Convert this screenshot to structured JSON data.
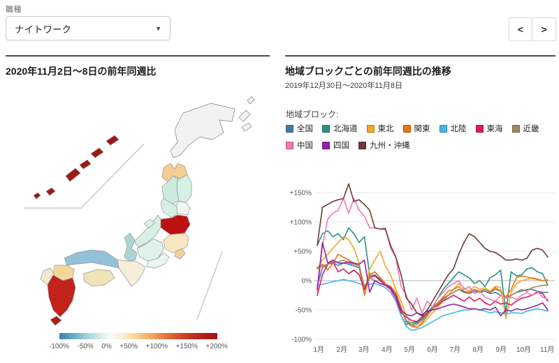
{
  "filter": {
    "label": "職種",
    "value": "ナイトワーク"
  },
  "pager": {
    "prev_label": "<",
    "next_label": ">"
  },
  "map_panel": {
    "title": "2020年11月2日〜8日の前年同週比",
    "color_scale": {
      "ticks": [
        "-100%",
        "-50%",
        "0%",
        "+50%",
        "+100%",
        "+150%",
        "+200%"
      ],
      "stops": [
        {
          "pos": 0,
          "color": "#3a7fb0"
        },
        {
          "pos": 17,
          "color": "#9fcfda"
        },
        {
          "pos": 28,
          "color": "#e2f1ee"
        },
        {
          "pos": 33,
          "color": "#fbfbf6"
        },
        {
          "pos": 41,
          "color": "#fbeccb"
        },
        {
          "pos": 50,
          "color": "#f6cd92"
        },
        {
          "pos": 60,
          "color": "#ef9f58"
        },
        {
          "pos": 70,
          "color": "#e06636"
        },
        {
          "pos": 83,
          "color": "#c53320"
        },
        {
          "pos": 100,
          "color": "#9c120e"
        }
      ]
    },
    "regions": {
      "hokkaido": "#f2f2f2",
      "ne-islands": "#f2f2f2",
      "aomori": "#f6cd8e",
      "akita": "#c9ecdf",
      "iwate": "#d7f0e4",
      "yamagata": "#d7f0e4",
      "miyagi": "#eef7f2",
      "fukushima": "#bd1111",
      "niigata": "#d7f0e4",
      "sado": "#d8eee6",
      "kanto": "#fae6c2",
      "chiba": "#f3cf9b",
      "chubu": "#dff3ea",
      "hokuriku": "#a9d6d4",
      "tokai": "#ebf6f1",
      "kinki": "#f5eedb",
      "chugoku": "#93c1d9",
      "shikoku": "#eee4b8",
      "kyushu-north": "#f4d89b",
      "nagasaki": "#f4e8cc",
      "kyushu-south": "#c2221a",
      "osumi-island": "#ae1b10",
      "okinawa": "#9e1a12"
    }
  },
  "chart_panel": {
    "title": "地域ブロックごとの前年同週比の推移",
    "subtitle": "2019年12月30日〜2020年11月8日",
    "legend_title": "地域ブロック:"
  },
  "chart_data": {
    "type": "line",
    "x_unit": "week index, 0 = week of 2019-12-30, 44 = week of 2020-11-02",
    "x_ticks": [
      {
        "label": "1月",
        "week": 0.3
      },
      {
        "label": "2月",
        "week": 4.7
      },
      {
        "label": "3月",
        "week": 8.9
      },
      {
        "label": "4月",
        "week": 13.3
      },
      {
        "label": "5月",
        "week": 17.6
      },
      {
        "label": "6月",
        "week": 22.0
      },
      {
        "label": "7月",
        "week": 26.3
      },
      {
        "label": "8月",
        "week": 30.7
      },
      {
        "label": "9月",
        "week": 35.1
      },
      {
        "label": "10月",
        "week": 39.4
      },
      {
        "label": "11月",
        "week": 43.9
      }
    ],
    "y_ticks": [
      {
        "v": 150,
        "label": "+150%"
      },
      {
        "v": 100,
        "label": "+100%"
      },
      {
        "v": 50,
        "label": "+50%"
      },
      {
        "v": 0,
        "label": "0%"
      },
      {
        "v": -50,
        "label": "-50%"
      },
      {
        "v": -100,
        "label": "-100%"
      }
    ],
    "ylim": [
      -100,
      175
    ],
    "grid": true,
    "legend_position": "top",
    "series": [
      {
        "name": "全国",
        "color": "#3f7cac",
        "values": [
          -10,
          22,
          28,
          30,
          26,
          30,
          28,
          25,
          22,
          -18,
          8,
          10,
          2,
          -5,
          -12,
          -25,
          -50,
          -68,
          -75,
          -72,
          -65,
          -55,
          -45,
          -38,
          -30,
          -25,
          -20,
          -15,
          -20,
          -22,
          -18,
          -20,
          -18,
          -22,
          -20,
          -25,
          -30,
          -25,
          -20,
          -18,
          -15,
          -15,
          -18,
          -20,
          -20
        ]
      },
      {
        "name": "北海道",
        "color": "#2a9184",
        "values": [
          60,
          80,
          85,
          75,
          80,
          70,
          90,
          80,
          65,
          75,
          10,
          15,
          5,
          -5,
          -15,
          -30,
          -60,
          -75,
          -72,
          -70,
          -65,
          -55,
          -45,
          -30,
          -15,
          -5,
          5,
          15,
          10,
          5,
          -5,
          0,
          -10,
          5,
          10,
          18,
          -55,
          15,
          8,
          10,
          20,
          22,
          15,
          12,
          -8
        ]
      },
      {
        "name": "東北",
        "color": "#f5a623",
        "values": [
          20,
          35,
          45,
          55,
          65,
          75,
          70,
          55,
          30,
          -20,
          20,
          35,
          50,
          25,
          10,
          -15,
          -35,
          -60,
          -75,
          -80,
          -75,
          -65,
          -55,
          -45,
          -35,
          -25,
          -15,
          -5,
          -12,
          -18,
          -10,
          -15,
          -12,
          -18,
          -10,
          -12,
          -65,
          -20,
          -5,
          0,
          2,
          5,
          3,
          0,
          2
        ]
      },
      {
        "name": "関東",
        "color": "#ee7410",
        "values": [
          22,
          28,
          18,
          30,
          45,
          40,
          35,
          30,
          25,
          -25,
          10,
          15,
          5,
          -5,
          -10,
          -20,
          -45,
          -70,
          -78,
          -80,
          -72,
          -60,
          -48,
          -38,
          -28,
          -18,
          -15,
          -10,
          -18,
          -22,
          -15,
          -20,
          -15,
          -20,
          -12,
          -18,
          -28,
          -15,
          5,
          8,
          6,
          4,
          2,
          0,
          0
        ]
      },
      {
        "name": "北陸",
        "color": "#41b7e9",
        "values": [
          -8,
          -6,
          -4,
          -2,
          0,
          2,
          0,
          -2,
          -5,
          -8,
          -6,
          -5,
          -8,
          -12,
          -20,
          -35,
          -60,
          -78,
          -85,
          -83,
          -80,
          -75,
          -70,
          -65,
          -60,
          -57,
          -55,
          -52,
          -50,
          -50,
          -48,
          -50,
          -52,
          -55,
          -53,
          -55,
          -57,
          -55,
          -55,
          -56,
          -52,
          -50,
          -48,
          -50,
          -52
        ]
      },
      {
        "name": "東海",
        "color": "#d81b60",
        "values": [
          -25,
          10,
          28,
          32,
          15,
          20,
          12,
          18,
          10,
          -15,
          5,
          8,
          0,
          -8,
          -15,
          -30,
          -55,
          -62,
          -68,
          -70,
          -62,
          -55,
          -48,
          -42,
          -35,
          -30,
          -25,
          -30,
          -35,
          -28,
          -35,
          -30,
          -38,
          -42,
          -35,
          -40,
          -38,
          -42,
          -35,
          -30,
          -28,
          -25,
          -20,
          -22,
          -35
        ]
      },
      {
        "name": "近畿",
        "color": "#a1885f",
        "values": [
          20,
          25,
          28,
          30,
          32,
          35,
          30,
          28,
          25,
          -10,
          5,
          0,
          -5,
          -8,
          -12,
          -25,
          -50,
          -70,
          -78,
          -75,
          -68,
          -58,
          -48,
          -40,
          -32,
          -25,
          -20,
          -15,
          -18,
          -20,
          -15,
          -18,
          -15,
          -20,
          -15,
          -18,
          -30,
          -25,
          -20,
          -15,
          -18,
          -12,
          -10,
          -8,
          -8
        ]
      },
      {
        "name": "中国",
        "color": "#f178b6",
        "values": [
          -20,
          60,
          105,
          115,
          120,
          140,
          115,
          140,
          120,
          110,
          90,
          90,
          88,
          90,
          55,
          40,
          -10,
          -25,
          -50,
          -30,
          -55,
          -35,
          -45,
          -30,
          -20,
          -10,
          -5,
          0,
          -15,
          -10,
          -22,
          -18,
          -28,
          -32,
          -35,
          -25,
          -30,
          -28,
          -32,
          -25,
          -20,
          -25,
          -18,
          -28,
          -32
        ]
      },
      {
        "name": "四国",
        "color": "#8e24aa",
        "values": [
          -15,
          65,
          30,
          35,
          30,
          30,
          32,
          30,
          28,
          35,
          -20,
          0,
          -5,
          -8,
          -12,
          -25,
          -50,
          -58,
          -60,
          -55,
          -58,
          -52,
          -50,
          -48,
          -45,
          -42,
          -40,
          -42,
          -45,
          -48,
          -48,
          -50,
          -48,
          -50,
          -45,
          -60,
          -50,
          -52,
          -48,
          -50,
          -48,
          -45,
          -42,
          -38,
          -50
        ]
      },
      {
        "name": "九州・沖縄",
        "color": "#6d3a35",
        "values": [
          60,
          125,
          130,
          135,
          138,
          140,
          165,
          135,
          138,
          130,
          120,
          90,
          88,
          88,
          60,
          40,
          10,
          -30,
          -40,
          -55,
          -60,
          -50,
          -35,
          -20,
          -5,
          10,
          20,
          45,
          65,
          80,
          75,
          65,
          55,
          50,
          48,
          42,
          35,
          35,
          37,
          35,
          38,
          52,
          55,
          52,
          40
        ]
      }
    ]
  }
}
